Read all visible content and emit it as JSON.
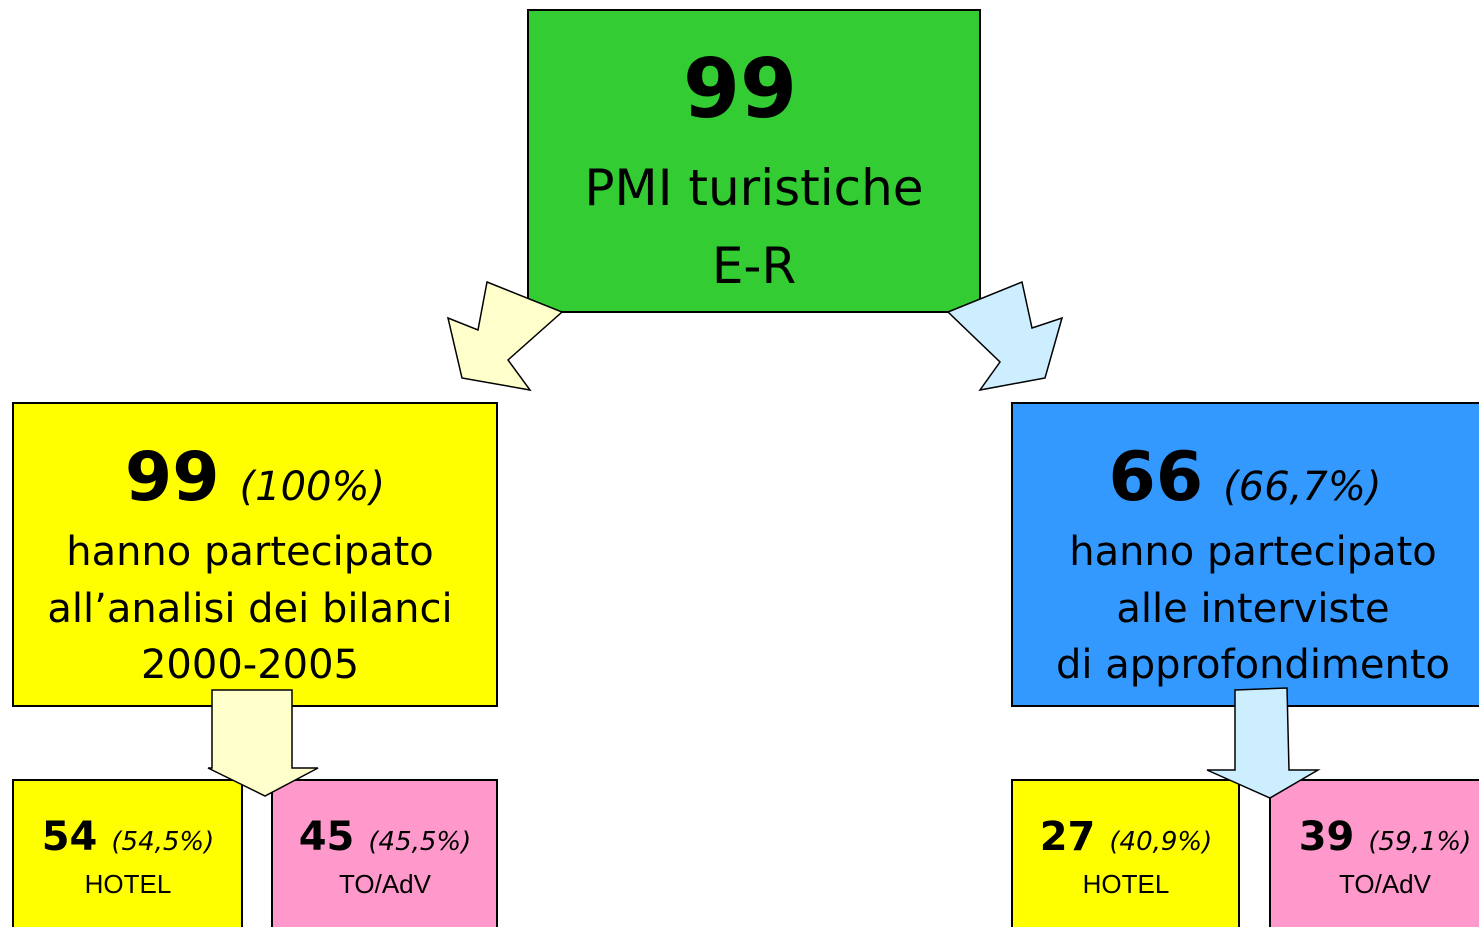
{
  "nodes": [
    {
      "number": "99",
      "lines": [
        "PMI turistiche",
        "E-R"
      ]
    },
    {
      "number": "99",
      "percent": "(100%)",
      "lines": [
        "hanno partecipato",
        "all’analisi dei bilanci",
        "2000-2005"
      ]
    },
    {
      "number": "66",
      "percent": "(66,7%)",
      "lines": [
        "hanno partecipato",
        "alle interviste",
        "di approfondimento"
      ]
    },
    {
      "number": "54",
      "percent": "(54,5%)",
      "label": "HOTEL"
    },
    {
      "number": "45",
      "percent": "(45,5%)",
      "label": "TO/AdV"
    },
    {
      "number": "27",
      "percent": "(40,9%)",
      "label": "HOTEL"
    },
    {
      "number": "39",
      "percent": "(59,1%)",
      "label": "TO/AdV"
    }
  ]
}
